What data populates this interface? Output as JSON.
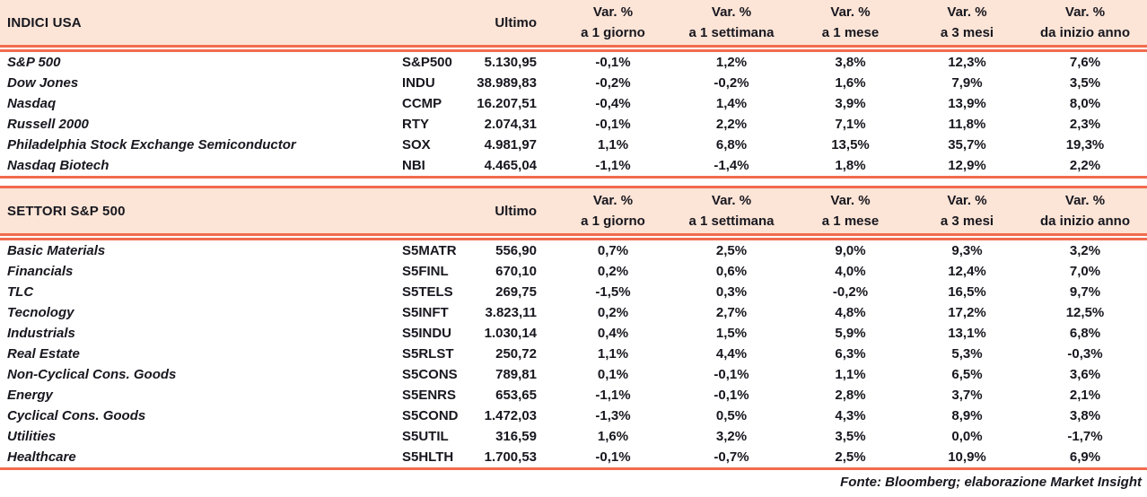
{
  "colors": {
    "band_background": "#fce4d6",
    "rule_line": "#f26b4e",
    "text": "#17171f"
  },
  "columns": {
    "ultimo": "Ultimo",
    "var_top": "Var. %",
    "var_subs": [
      "a 1 giorno",
      "a 1 settimana",
      "a 1 mese",
      "a 3 mesi",
      "da inizio anno"
    ]
  },
  "sections": [
    {
      "title": "INDICI USA",
      "rows": [
        {
          "name": "S&P 500",
          "code": "S&P500",
          "ultimo": "5.130,95",
          "vars": [
            "-0,1%",
            "1,2%",
            "3,8%",
            "12,3%",
            "7,6%"
          ]
        },
        {
          "name": "Dow Jones",
          "code": "INDU",
          "ultimo": "38.989,83",
          "vars": [
            "-0,2%",
            "-0,2%",
            "1,6%",
            "7,9%",
            "3,5%"
          ]
        },
        {
          "name": "Nasdaq",
          "code": "CCMP",
          "ultimo": "16.207,51",
          "vars": [
            "-0,4%",
            "1,4%",
            "3,9%",
            "13,9%",
            "8,0%"
          ]
        },
        {
          "name": "Russell 2000",
          "code": "RTY",
          "ultimo": "2.074,31",
          "vars": [
            "-0,1%",
            "2,2%",
            "7,1%",
            "11,8%",
            "2,3%"
          ]
        },
        {
          "name": "Philadelphia Stock Exchange Semiconductor",
          "code": "SOX",
          "ultimo": "4.981,97",
          "vars": [
            "1,1%",
            "6,8%",
            "13,5%",
            "35,7%",
            "19,3%"
          ]
        },
        {
          "name": "Nasdaq Biotech",
          "code": "NBI",
          "ultimo": "4.465,04",
          "vars": [
            "-1,1%",
            "-1,4%",
            "1,8%",
            "12,9%",
            "2,2%"
          ]
        }
      ]
    },
    {
      "title": "SETTORI S&P 500",
      "rows": [
        {
          "name": "Basic Materials",
          "code": "S5MATR",
          "ultimo": "556,90",
          "vars": [
            "0,7%",
            "2,5%",
            "9,0%",
            "9,3%",
            "3,2%"
          ]
        },
        {
          "name": "Financials",
          "code": "S5FINL",
          "ultimo": "670,10",
          "vars": [
            "0,2%",
            "0,6%",
            "4,0%",
            "12,4%",
            "7,0%"
          ]
        },
        {
          "name": "TLC",
          "code": "S5TELS",
          "ultimo": "269,75",
          "vars": [
            "-1,5%",
            "0,3%",
            "-0,2%",
            "16,5%",
            "9,7%"
          ]
        },
        {
          "name": "Tecnology",
          "code": "S5INFT",
          "ultimo": "3.823,11",
          "vars": [
            "0,2%",
            "2,7%",
            "4,8%",
            "17,2%",
            "12,5%"
          ]
        },
        {
          "name": "Industrials",
          "code": "S5INDU",
          "ultimo": "1.030,14",
          "vars": [
            "0,4%",
            "1,5%",
            "5,9%",
            "13,1%",
            "6,8%"
          ]
        },
        {
          "name": "Real Estate",
          "code": "S5RLST",
          "ultimo": "250,72",
          "vars": [
            "1,1%",
            "4,4%",
            "6,3%",
            "5,3%",
            "-0,3%"
          ]
        },
        {
          "name": "Non-Cyclical Cons. Goods",
          "code": "S5CONS",
          "ultimo": "789,81",
          "vars": [
            "0,1%",
            "-0,1%",
            "1,1%",
            "6,5%",
            "3,6%"
          ]
        },
        {
          "name": "Energy",
          "code": "S5ENRS",
          "ultimo": "653,65",
          "vars": [
            "-1,1%",
            "-0,1%",
            "2,8%",
            "3,7%",
            "2,1%"
          ]
        },
        {
          "name": "Cyclical Cons. Goods",
          "code": "S5COND",
          "ultimo": "1.472,03",
          "vars": [
            "-1,3%",
            "0,5%",
            "4,3%",
            "8,9%",
            "3,8%"
          ]
        },
        {
          "name": "Utilities",
          "code": "S5UTIL",
          "ultimo": "316,59",
          "vars": [
            "1,6%",
            "3,2%",
            "3,5%",
            "0,0%",
            "-1,7%"
          ]
        },
        {
          "name": "Healthcare",
          "code": "S5HLTH",
          "ultimo": "1.700,53",
          "vars": [
            "-0,1%",
            "-0,7%",
            "2,5%",
            "10,9%",
            "6,9%"
          ]
        }
      ]
    }
  ],
  "footer": {
    "source": "Fonte: Bloomberg; elaborazione Market Insight"
  }
}
